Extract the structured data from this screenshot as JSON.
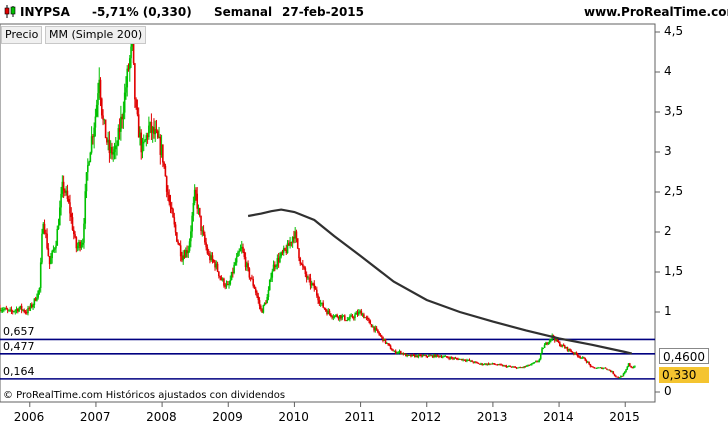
{
  "header": {
    "ticker": "INYPSA",
    "change": "-5,71% (0,330)",
    "period": "Semanal",
    "date": "27-feb-2015",
    "site": "www.ProRealTime.com"
  },
  "tabs": [
    {
      "label": "Precio"
    },
    {
      "label": "MM (Simple 200)"
    }
  ],
  "levels": [
    {
      "label": "0,657",
      "value": 0.657
    },
    {
      "label": "0,477",
      "value": 0.477
    },
    {
      "label": "0,164",
      "value": 0.164
    }
  ],
  "footer": "© ProRealTime.com Históricos ajustados con dividendos",
  "badges": {
    "ma_value": "0,4600",
    "price_value": "0,330"
  },
  "colors": {
    "up": "#00c000",
    "down": "#e00000",
    "ma_line": "#303030",
    "level_line": "#000080",
    "price_badge": "#f4c430"
  },
  "chart_data": {
    "type": "line",
    "ylim": [
      0,
      4.5
    ],
    "xlim": [
      2005.55,
      2015.45
    ],
    "y_ticks": [
      "4,5",
      "4",
      "3,5",
      "3",
      "2,5",
      "2",
      "1,5",
      "1",
      "0"
    ],
    "y_tick_values": [
      4.5,
      4,
      3.5,
      3,
      2.5,
      2,
      1.5,
      1,
      0
    ],
    "x_ticks": [
      "2006",
      "2007",
      "2008",
      "2009",
      "2010",
      "2011",
      "2012",
      "2013",
      "2014",
      "2015"
    ],
    "x_tick_values": [
      2006,
      2007,
      2008,
      2009,
      2010,
      2011,
      2012,
      2013,
      2014,
      2015
    ],
    "series": [
      {
        "x": [
          2005.55,
          2005.7,
          2005.85,
          2005.95,
          2006.05,
          2006.15,
          2006.2,
          2006.3,
          2006.4,
          2006.5,
          2006.6,
          2006.7,
          2006.8,
          2006.85,
          2006.9,
          2007.0,
          2007.05,
          2007.1,
          2007.15,
          2007.2,
          2007.3,
          2007.4,
          2007.5,
          2007.55,
          2007.6,
          2007.7,
          2007.8,
          2007.9,
          2008.0,
          2008.1,
          2008.2,
          2008.3,
          2008.4,
          2008.5,
          2008.6,
          2008.7,
          2008.8,
          2008.9,
          2009.0,
          2009.1,
          2009.2,
          2009.3,
          2009.4,
          2009.5,
          2009.6,
          2009.65,
          2009.7,
          2009.8,
          2009.9,
          2010.0,
          2010.1,
          2010.2,
          2010.3,
          2010.4,
          2010.5,
          2010.6,
          2010.7,
          2010.8,
          2010.9,
          2011.0,
          2011.1,
          2011.2,
          2011.3,
          2011.4,
          2011.5,
          2011.6,
          2011.7,
          2011.8,
          2011.9,
          2012.0,
          2012.2,
          2012.4,
          2012.6,
          2012.8,
          2013.0,
          2013.2,
          2013.4,
          2013.5,
          2013.6,
          2013.7,
          2013.75,
          2013.8,
          2013.9,
          2014.0,
          2014.1,
          2014.2,
          2014.3,
          2014.4,
          2014.5,
          2014.6,
          2014.7,
          2014.8,
          2014.85,
          2014.9,
          2014.95,
          2015.0,
          2015.05,
          2015.1,
          2015.15
        ],
        "y": [
          1.05,
          1.0,
          1.05,
          1.0,
          1.1,
          1.3,
          2.2,
          1.6,
          1.9,
          2.6,
          2.3,
          1.8,
          1.9,
          2.6,
          3.0,
          3.5,
          4.0,
          3.4,
          3.2,
          3.0,
          3.0,
          3.5,
          4.1,
          4.3,
          3.5,
          3.0,
          3.3,
          3.2,
          3.0,
          2.4,
          2.0,
          1.7,
          1.8,
          2.5,
          2.0,
          1.7,
          1.6,
          1.4,
          1.3,
          1.6,
          1.8,
          1.5,
          1.3,
          1.0,
          1.2,
          1.5,
          1.6,
          1.7,
          1.8,
          2.0,
          1.6,
          1.4,
          1.3,
          1.1,
          1.0,
          0.95,
          0.95,
          0.9,
          0.95,
          1.0,
          0.9,
          0.8,
          0.7,
          0.6,
          0.5,
          0.5,
          0.45,
          0.45,
          0.45,
          0.45,
          0.45,
          0.42,
          0.4,
          0.35,
          0.35,
          0.32,
          0.3,
          0.32,
          0.35,
          0.4,
          0.55,
          0.6,
          0.7,
          0.6,
          0.55,
          0.5,
          0.45,
          0.4,
          0.3,
          0.3,
          0.3,
          0.25,
          0.2,
          0.18,
          0.2,
          0.25,
          0.35,
          0.3,
          0.33
        ]
      },
      {
        "x": [
          2009.3,
          2009.5,
          2009.65,
          2009.8,
          2010.0,
          2010.3,
          2010.6,
          2011.0,
          2011.5,
          2012.0,
          2012.5,
          2013.0,
          2013.5,
          2014.0,
          2014.5,
          2015.0,
          2015.1
        ],
        "y": [
          2.2,
          2.23,
          2.26,
          2.28,
          2.25,
          2.15,
          1.95,
          1.7,
          1.38,
          1.15,
          1.0,
          0.88,
          0.77,
          0.67,
          0.59,
          0.5,
          0.48
        ]
      }
    ]
  }
}
